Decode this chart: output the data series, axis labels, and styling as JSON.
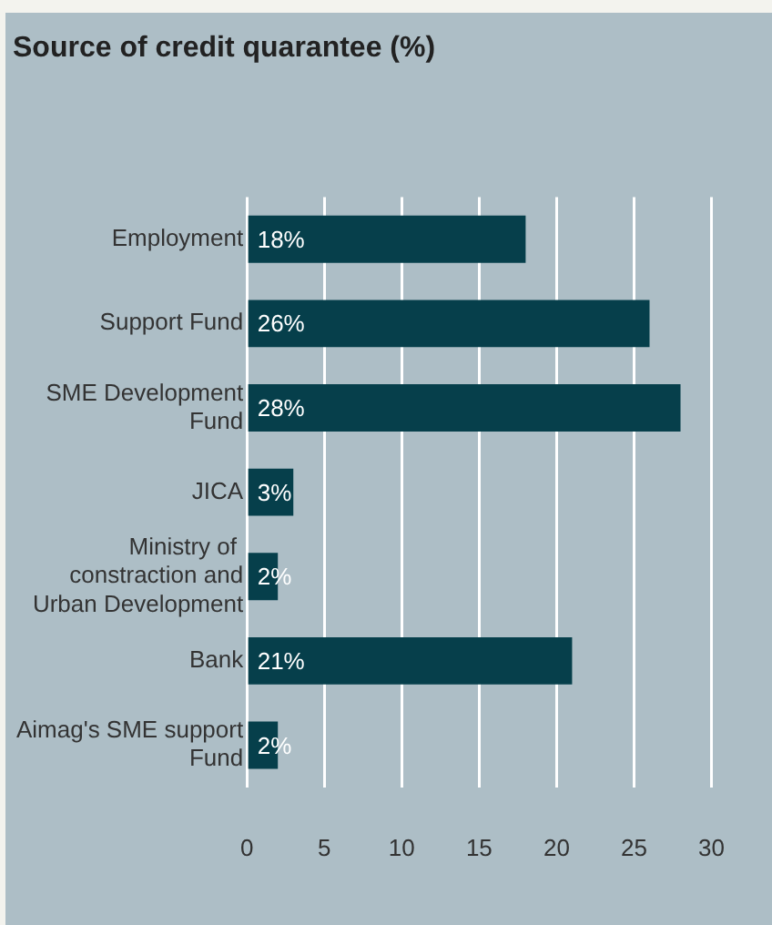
{
  "chart_data": {
    "type": "bar",
    "orientation": "horizontal",
    "title": "Source of credit quarantee (%)",
    "categories": [
      "Employment",
      "Support Fund",
      "SME Development Fund",
      "JICA",
      "Ministry of  constraction and Urban Development",
      "Bank",
      "Aimag's SME support Fund"
    ],
    "values": [
      18,
      26,
      28,
      3,
      2,
      21,
      2
    ],
    "value_labels": [
      "18%",
      "26%",
      "28%",
      "3%",
      "2%",
      "21%",
      "2%"
    ],
    "color": "#063f4b",
    "xlim": [
      0,
      30
    ],
    "xticks": [
      0,
      5,
      10,
      15,
      20,
      25,
      30
    ],
    "grid": "x",
    "legend": false
  }
}
